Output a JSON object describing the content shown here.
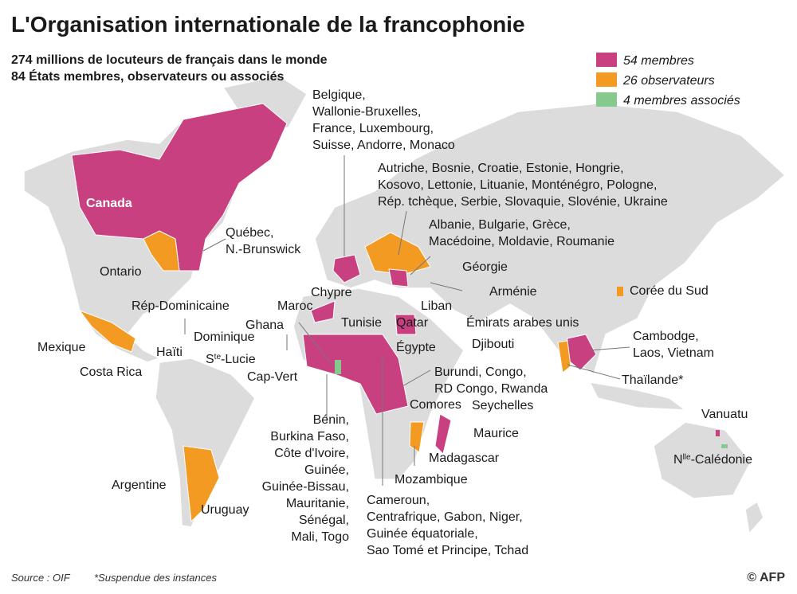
{
  "header": {
    "title": "L'Organisation internationale de la francophonie",
    "subtitle": [
      "274 millions de locuteurs de français dans le monde",
      "84 États membres, observateurs ou associés"
    ]
  },
  "legend": [
    {
      "label": "54 membres",
      "color": "#c8407f"
    },
    {
      "label": "26 observateurs",
      "color": "#f39a22"
    },
    {
      "label": "4 membres associés",
      "color": "#86c98c"
    }
  ],
  "labels": [
    {
      "lines": [
        "Belgique,",
        "Wallonie-Bruxelles,",
        "France, Luxembourg,",
        "Suisse, Andorre, Monaco"
      ]
    },
    {
      "lines": [
        "Autriche, Bosnie, Croatie, Estonie, Hongrie,",
        "Kosovo, Lettonie, Lituanie, Monténégro, Pologne,",
        "Rép. tchèque, Serbie, Slovaquie, Slovénie, Ukraine"
      ]
    },
    {
      "lines": [
        "Albanie, Bulgarie, Grèce,",
        "Macédoine, Moldavie, Roumanie"
      ]
    },
    {
      "lines": [
        "Géorgie"
      ]
    },
    {
      "lines": [
        "Arménie"
      ]
    },
    {
      "lines": [
        "Corée du Sud"
      ]
    },
    {
      "lines": [
        "Québec,",
        "N.-Brunswick"
      ]
    },
    {
      "lines": [
        "Canada"
      ]
    },
    {
      "lines": [
        "Ontario"
      ]
    },
    {
      "lines": [
        "Rép-Dominicaine"
      ]
    },
    {
      "lines": [
        "Chypre"
      ]
    },
    {
      "lines": [
        "Maroc"
      ]
    },
    {
      "lines": [
        "Liban"
      ]
    },
    {
      "lines": [
        "Ghana"
      ]
    },
    {
      "lines": [
        "Tunisie"
      ]
    },
    {
      "lines": [
        "Qatar"
      ]
    },
    {
      "lines": [
        "Émirats arabes unis"
      ]
    },
    {
      "lines": [
        "Mexique"
      ]
    },
    {
      "lines": [
        "Dominique"
      ]
    },
    {
      "lines": [
        "Haïti"
      ]
    },
    {
      "lines": [
        [
          "S",
          "te",
          "-Lucie"
        ]
      ]
    },
    {
      "lines": [
        "Égypte"
      ]
    },
    {
      "lines": [
        "Djibouti"
      ]
    },
    {
      "lines": [
        "Cambodge,",
        "Laos, Vietnam"
      ]
    },
    {
      "lines": [
        "Costa Rica"
      ]
    },
    {
      "lines": [
        "Cap-Vert"
      ]
    },
    {
      "lines": [
        "Thaïlande*"
      ]
    },
    {
      "lines": [
        "Burundi, Congo,",
        "RD Congo, Rwanda"
      ]
    },
    {
      "lines": [
        "Comores"
      ]
    },
    {
      "lines": [
        "Seychelles"
      ]
    },
    {
      "lines": [
        "Vanuatu"
      ]
    },
    {
      "lines": [
        "Bénin,",
        "Burkina Faso,",
        "Côte d'Ivoire,",
        "Guinée,",
        "Guinée-Bissau,",
        "Mauritanie,",
        "Sénégal,",
        "Mali, Togo"
      ]
    },
    {
      "lines": [
        "Maurice"
      ]
    },
    {
      "lines": [
        "Madagascar"
      ]
    },
    {
      "lines": [
        [
          "N",
          "lle",
          "-Calédonie"
        ]
      ]
    },
    {
      "lines": [
        "Mozambique"
      ]
    },
    {
      "lines": [
        "Argentine"
      ]
    },
    {
      "lines": [
        "Uruguay"
      ]
    },
    {
      "lines": [
        "Cameroun,",
        "Centrafrique, Gabon, Niger,",
        "Guinée équatoriale,",
        "Sao Tomé et Principe, Tchad"
      ]
    }
  ],
  "footer": {
    "source": "Source : OIF",
    "note": "*Suspendue des instances",
    "credit": "© AFP"
  }
}
